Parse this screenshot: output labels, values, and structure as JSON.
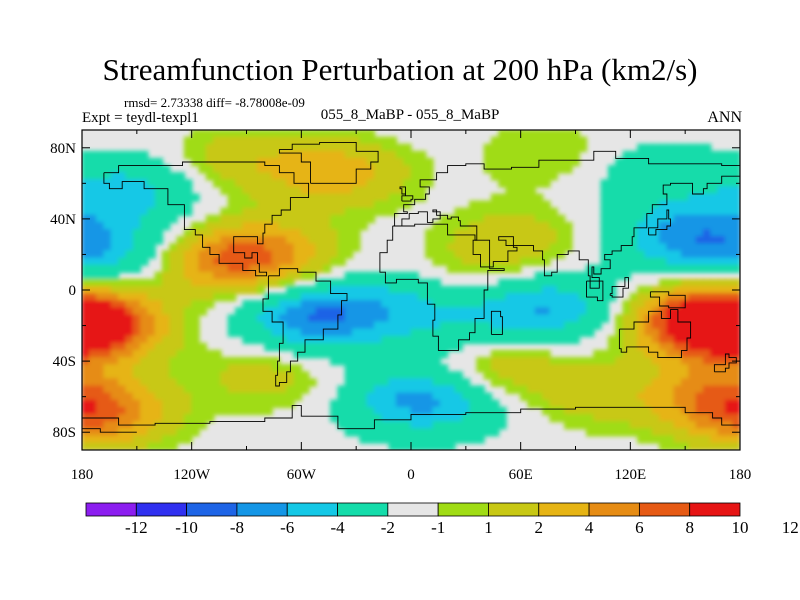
{
  "chart_data": {
    "type": "heatmap",
    "title": "Streamfunction Perturbation at 200 hPa (km2/s)",
    "stats_line": "rmsd= 2.73338  diff= -8.78008e-09",
    "experiment": "Expt = teydl-texpl1",
    "case": "055_8_MaBP - 055_8_MaBP",
    "season": "ANN",
    "xlim": [
      -180,
      180
    ],
    "ylim": [
      -90,
      90
    ],
    "x_tick_values": [
      -180,
      -120,
      -60,
      0,
      60,
      120,
      180
    ],
    "x_tick_labels": [
      "180",
      "120W",
      "60W",
      "0",
      "60E",
      "120E",
      "180"
    ],
    "y_tick_values": [
      80,
      40,
      0,
      -40,
      -80
    ],
    "y_tick_labels": [
      "80N",
      "40N",
      "0",
      "40S",
      "80S"
    ],
    "colorbar": {
      "colors": [
        "#8c1ef0",
        "#3030f0",
        "#1e64e6",
        "#1496e6",
        "#14c8e6",
        "#14dcaa",
        "#e6e6e6",
        "#a0dc14",
        "#c8c814",
        "#e6b414",
        "#e68c14",
        "#e65a14",
        "#e61414"
      ],
      "labels": [
        "-12",
        "-10",
        "-8",
        "-6",
        "-4",
        "-2",
        "-1",
        "1",
        "2",
        "4",
        "6",
        "8",
        "10",
        "12"
      ],
      "label_values": [
        -12,
        -10,
        -8,
        -6,
        -4,
        -2,
        -1,
        1,
        2,
        4,
        6,
        8,
        10,
        12
      ],
      "label_positions": [
        1,
        2,
        3,
        4,
        5,
        6,
        7,
        8,
        9,
        10,
        11,
        12,
        13,
        14
      ]
    },
    "field_features": [
      {
        "name": "north-pacific-low",
        "lon": -155,
        "lat": 55,
        "value": -5.0
      },
      {
        "name": "east-pacific-low",
        "lon": -165,
        "lat": 20,
        "value": -5.0
      },
      {
        "name": "south-tropical-pacific-high",
        "lon": -175,
        "lat": -20,
        "value": 10.5
      },
      {
        "name": "south-pacific-high",
        "lon": -170,
        "lat": -70,
        "value": 7.0
      },
      {
        "name": "central-america-high",
        "lon": -82,
        "lat": 19,
        "value": 7.0
      },
      {
        "name": "caribbean-high",
        "lon": -112,
        "lat": 15,
        "value": 4.0
      },
      {
        "name": "tropical-amazon-low",
        "lon": -55,
        "lat": -16,
        "value": -7.5
      },
      {
        "name": "tropical-atlantic-low",
        "lon": -12,
        "lat": -8,
        "value": -3.5
      },
      {
        "name": "north-atlantic-high",
        "lon": -40,
        "lat": 65,
        "value": 5.0
      },
      {
        "name": "arctic-high",
        "lon": -95,
        "lat": 73,
        "value": 3.0
      },
      {
        "name": "south-atlantic-high",
        "lon": -78,
        "lat": -48,
        "value": 3.0
      },
      {
        "name": "south-atlantic-low",
        "lon": 0,
        "lat": -62,
        "value": -5.0
      },
      {
        "name": "south-indian-low",
        "lon": 25,
        "lat": -60,
        "value": -3.0
      },
      {
        "name": "southern-africa-high",
        "lon": 45,
        "lat": -43,
        "value": 5.0
      },
      {
        "name": "indian-ocean-low",
        "lon": 75,
        "lat": -10,
        "value": -6.0
      },
      {
        "name": "madagascar-low",
        "lon": 30,
        "lat": -25,
        "value": -3.0
      },
      {
        "name": "eurasia-high",
        "lon": 60,
        "lat": 30,
        "value": 2.5
      },
      {
        "name": "tibet-high",
        "lon": 40,
        "lat": 15,
        "value": 2.0
      },
      {
        "name": "siberia-high",
        "lon": 75,
        "lat": 76,
        "value": 2.2
      },
      {
        "name": "west-pacific-low",
        "lon": 150,
        "lat": 30,
        "value": -6.5
      },
      {
        "name": "west-pacific-high",
        "lon": 160,
        "lat": -18,
        "value": 10.5
      },
      {
        "name": "tasman-high",
        "lon": 165,
        "lat": -60,
        "value": 5.0
      },
      {
        "name": "south-indian-high",
        "lon": 100,
        "lat": -60,
        "value": 2.5
      },
      {
        "name": "bering-low",
        "lon": 130,
        "lat": 65,
        "value": -2.5
      }
    ]
  }
}
